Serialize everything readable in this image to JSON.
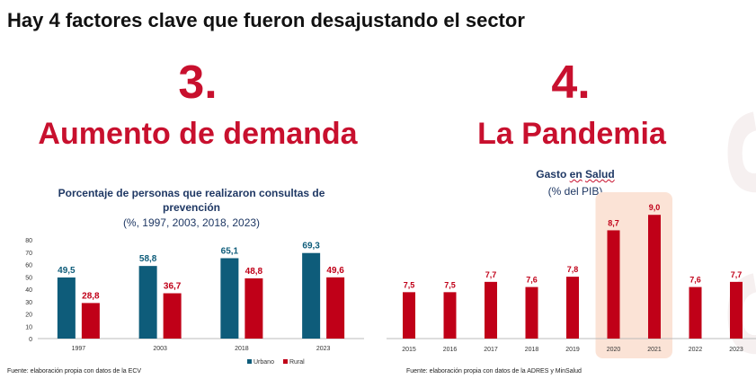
{
  "slide": {
    "title": "Hay 4 factores clave que fueron desajustando el sector",
    "left_number": "3.",
    "left_heading": "Aumento de demanda",
    "right_number": "4.",
    "right_heading": "La Pandemia",
    "left_source": "Fuente: elaboración propia con datos de la ECV",
    "right_source": "Fuente: elaboración propia con datos de la ADRES y MinSalud"
  },
  "colors": {
    "accent": "#c8102e",
    "urbano": "#0e5c7a",
    "rural": "#c00018",
    "highlight": "#fbe3d6",
    "navy": "#1f3864"
  },
  "chart_left_text": {
    "title": "Porcentaje de personas que realizaron consultas de prevención",
    "subtitle": "(%, 1997, 2003, 2018, 2023)"
  },
  "chart_right_text": {
    "title_part1": "Gasto",
    "title_part2": "en",
    "title_part3": "Salud",
    "subtitle": "(% del PIB)"
  },
  "chart_data": [
    {
      "type": "bar",
      "title": "Porcentaje de personas que realizaron consultas de prevención",
      "subtitle": "(%, 1997, 2003, 2018, 2023)",
      "categories": [
        "1997",
        "2003",
        "2018",
        "2023"
      ],
      "series": [
        {
          "name": "Urbano",
          "values": [
            49.5,
            58.8,
            65.1,
            69.3
          ],
          "labels": [
            "49,5",
            "58,8",
            "65,1",
            "69,3"
          ]
        },
        {
          "name": "Rural",
          "values": [
            28.8,
            36.7,
            48.8,
            49.6
          ],
          "labels": [
            "28,8",
            "36,7",
            "48,8",
            "49,6"
          ]
        }
      ],
      "ylim": [
        0,
        80
      ],
      "yticks": [
        "0",
        "10",
        "20",
        "30",
        "40",
        "50",
        "60",
        "70",
        "80"
      ],
      "legend": "bottom-right",
      "xlabel": "",
      "ylabel": ""
    },
    {
      "type": "bar",
      "title": "Gasto en Salud",
      "subtitle": "(% del PIB)",
      "categories": [
        "2015",
        "2016",
        "2017",
        "2018",
        "2019",
        "2020",
        "2021",
        "2022",
        "2023"
      ],
      "values": [
        7.5,
        7.5,
        7.7,
        7.6,
        7.8,
        8.7,
        9.0,
        7.6,
        7.7
      ],
      "labels": [
        "7,5",
        "7,5",
        "7,7",
        "7,6",
        "7,8",
        "8,7",
        "9,0",
        "7,6",
        "7,7"
      ],
      "highlighted": [
        "2020",
        "2021"
      ],
      "ylim": [
        6.6,
        9.3
      ],
      "xlabel": "",
      "ylabel": ""
    }
  ]
}
